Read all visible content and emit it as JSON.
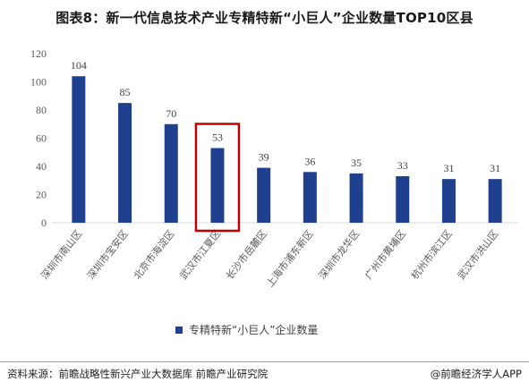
{
  "title": "图表8：新一代信息技术产业专精特新“小巨人”企业数量TOP10区县",
  "source": "资料来源：前瞻战略性新兴产业大数据库 前瞻产业研究院",
  "brand": "@前瞻经济学人APP",
  "colors": {
    "bar": "#1f3f8f",
    "highlight": "#c00000",
    "axis": "#d9d9d9"
  },
  "chart_data": {
    "type": "bar",
    "categories": [
      "深圳市南山区",
      "深圳市宝安区",
      "北京市海淀区",
      "武汉市江夏区",
      "长沙市岳麓区",
      "上海市浦东新区",
      "深圳市龙华区",
      "广州市黄埔区",
      "杭州市滨江区",
      "武汉市洪山区"
    ],
    "series": [
      {
        "name": "专精特新“小巨人”企业数量",
        "values": [
          104,
          85,
          70,
          53,
          39,
          36,
          35,
          33,
          31,
          31
        ]
      }
    ],
    "ylim": [
      0,
      120
    ],
    "yticks": [
      0,
      20,
      40,
      60,
      80,
      100,
      120
    ],
    "highlight_index": 3,
    "legend_position": "bottom",
    "grid": false
  }
}
